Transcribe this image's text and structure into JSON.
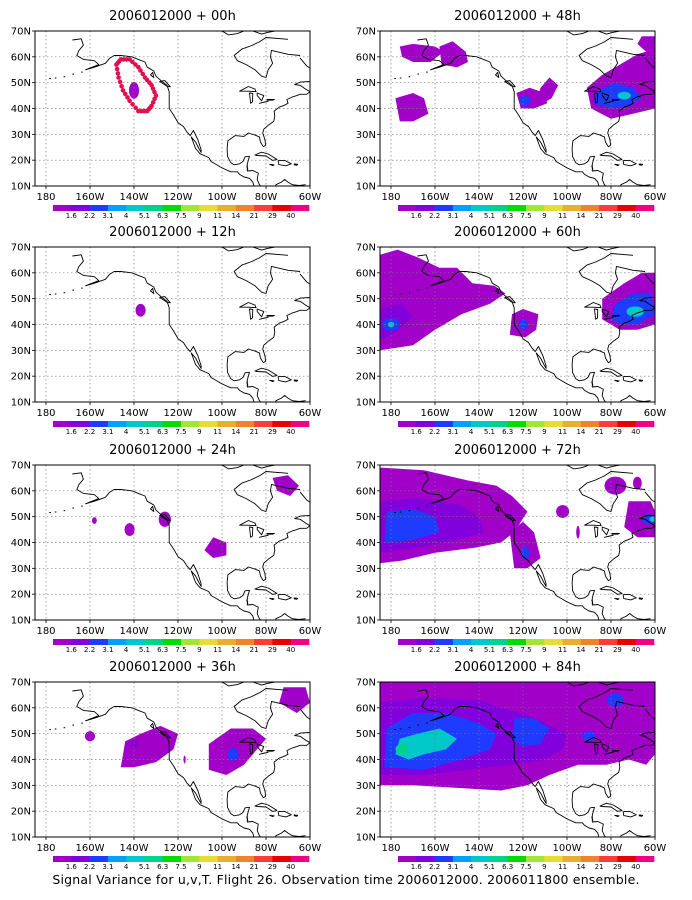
{
  "caption": "Signal Variance for u,v,T. Flight 26. Observation time 2006012000. 2006011800 ensemble.",
  "x_ticks": [
    "180",
    "160W",
    "140W",
    "120W",
    "100W",
    "80W",
    "60W"
  ],
  "y_ticks": [
    "70N",
    "60N",
    "50N",
    "40N",
    "30N",
    "20N",
    "10N"
  ],
  "colorbar": {
    "labels": [
      "1.6",
      "2.2",
      "3.1",
      "4",
      "5.1",
      "6.3",
      "7.5",
      "9",
      "11",
      "14",
      "21",
      "29",
      "40"
    ],
    "colors": [
      "#a000c8",
      "#8200dc",
      "#1e3cff",
      "#00a0ff",
      "#00c8c8",
      "#00d28c",
      "#00dc00",
      "#a0e632",
      "#e6dc32",
      "#e6af2d",
      "#f08228",
      "#fa3c3c",
      "#e60000",
      "#f00082"
    ]
  },
  "panels": [
    {
      "title": "2006012000 + 00h"
    },
    {
      "title": "2006012000 + 48h"
    },
    {
      "title": "2006012000 + 12h"
    },
    {
      "title": "2006012000 + 60h"
    },
    {
      "title": "2006012000 + 24h"
    },
    {
      "title": "2006012000 + 72h"
    },
    {
      "title": "2006012000 + 36h"
    },
    {
      "title": "2006012000 + 84h"
    }
  ],
  "map_extent": {
    "lon": [
      -185,
      -60
    ],
    "lat": [
      10,
      70
    ]
  }
}
